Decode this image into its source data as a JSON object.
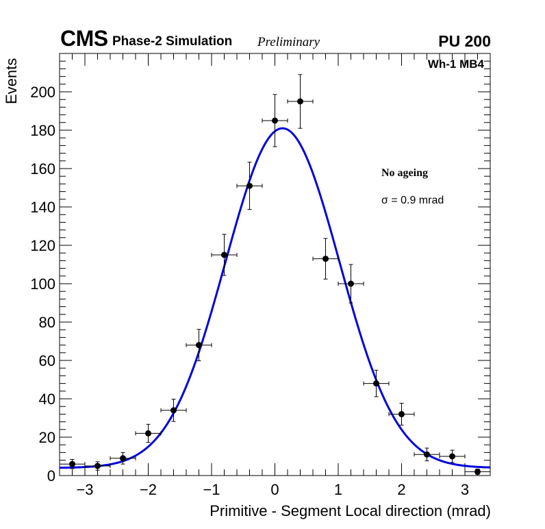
{
  "header": {
    "experiment": "CMS",
    "subtitle": "Phase-2 Simulation",
    "status": "Preliminary",
    "pileup": "PU 200",
    "region": "Wh-1 MB4"
  },
  "legend": {
    "condition": "No ageing",
    "sigma_text": "σ = 0.9 mrad"
  },
  "colors": {
    "fit": "#0000dd",
    "points": "#000000",
    "axis": "#000000"
  },
  "chart_data": {
    "type": "scatter",
    "title": "CMS Phase-2 Simulation Preliminary",
    "xlabel": "Primitive - Segment Local direction (mrad)",
    "ylabel": "Events",
    "xlim": [
      -3.4,
      3.4
    ],
    "ylim": [
      0,
      220
    ],
    "grid": false,
    "legend_position": "right",
    "x_ticks": [
      -3,
      -2,
      -1,
      0,
      1,
      2,
      3
    ],
    "x_tick_labels": [
      "−3",
      "−2",
      "−1",
      "0",
      "1",
      "2",
      "3"
    ],
    "y_ticks": [
      0,
      20,
      40,
      60,
      80,
      100,
      120,
      140,
      160,
      180,
      200
    ],
    "y_tick_labels": [
      "0",
      "20",
      "40",
      "60",
      "80",
      "100",
      "120",
      "140",
      "160",
      "180",
      "200"
    ],
    "bin_half_width": 0.2,
    "series": [
      {
        "name": "Simulation",
        "kind": "histogram-points",
        "x": [
          -3.2,
          -2.8,
          -2.4,
          -2.0,
          -1.6,
          -1.2,
          -0.8,
          -0.4,
          0.0,
          0.4,
          0.8,
          1.2,
          1.6,
          2.0,
          2.4,
          2.8,
          3.2
        ],
        "y": [
          6,
          5,
          9,
          22,
          34,
          68,
          115,
          151,
          185,
          195,
          113,
          100,
          48,
          32,
          11,
          10,
          2
        ],
        "yerr": [
          2.4,
          2.2,
          3.0,
          4.7,
          5.8,
          8.2,
          10.7,
          12.3,
          13.6,
          14.0,
          10.6,
          10.0,
          6.9,
          5.7,
          3.3,
          3.2,
          1.4
        ]
      },
      {
        "name": "Gaussian fit",
        "kind": "curve",
        "amplitude": 177,
        "mean": 0.12,
        "sigma": 0.9,
        "offset": 4
      }
    ]
  }
}
